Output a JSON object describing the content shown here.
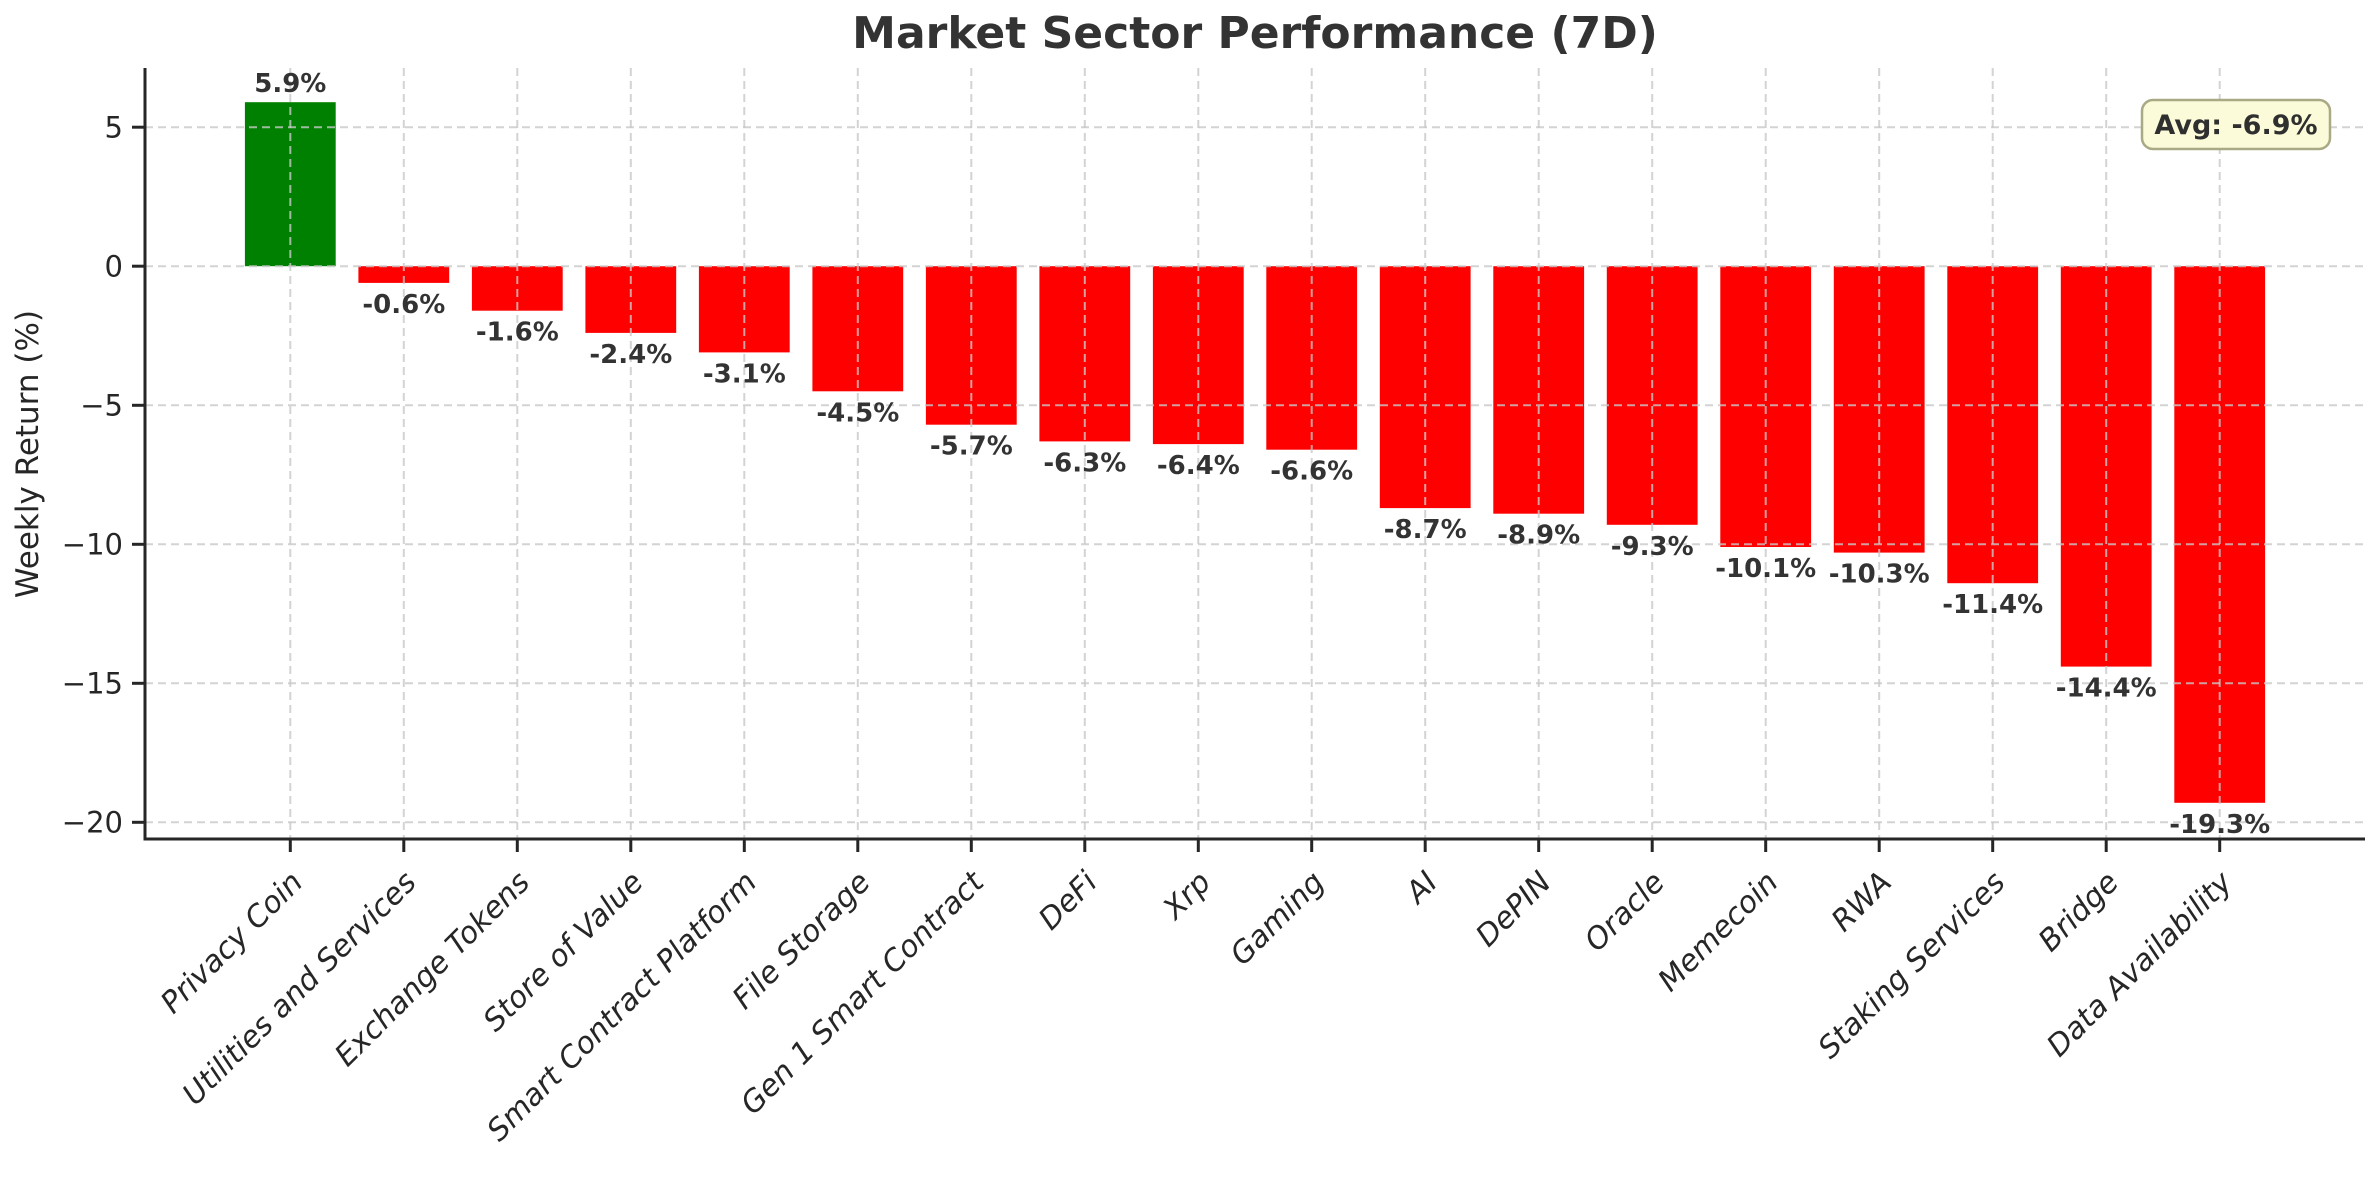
{
  "chart_data": {
    "type": "bar",
    "title": "Market Sector Performance (7D)",
    "xlabel": "",
    "ylabel": "Weekly Return (%)",
    "categories": [
      "Privacy Coin",
      "Utilities and Services",
      "Exchange Tokens",
      "Store of Value",
      "Smart Contract Platform",
      "File Storage",
      "Gen 1 Smart Contract",
      "DeFi",
      "Xrp",
      "Gaming",
      "AI",
      "DePIN",
      "Oracle",
      "Memecoin",
      "RWA",
      "Staking Services",
      "Bridge",
      "Data Availability"
    ],
    "values": [
      5.9,
      -0.6,
      -1.6,
      -2.4,
      -3.1,
      -4.5,
      -5.7,
      -6.3,
      -6.4,
      -6.6,
      -8.7,
      -8.9,
      -9.3,
      -10.1,
      -10.3,
      -11.4,
      -14.4,
      -19.3
    ],
    "value_labels": [
      "5.9%",
      "-0.6%",
      "-1.6%",
      "-2.4%",
      "-3.1%",
      "-4.5%",
      "-5.7%",
      "-6.3%",
      "-6.4%",
      "-6.6%",
      "-8.7%",
      "-8.9%",
      "-9.3%",
      "-10.1%",
      "-10.3%",
      "-11.4%",
      "-14.4%",
      "-19.3%"
    ],
    "ytick_values": [
      5,
      0,
      -5,
      -10,
      -15,
      -20
    ],
    "ytick_labels": [
      "5",
      "0",
      "−5",
      "−10",
      "−15",
      "−20"
    ],
    "ylim": [
      -20.6,
      7.13
    ],
    "bar_width_fraction": 0.8,
    "grid": {
      "show": true,
      "axis": "both",
      "style": "dashed",
      "on_top": true
    },
    "legend": {
      "show": false
    },
    "xtick_rotation_deg": 45,
    "annotation": {
      "label": "Avg: -6.9%"
    },
    "colors": {
      "positive_bar": "#008000",
      "negative_bar": "#ff0000",
      "grid": "#c8c8c8",
      "spine": "#262626",
      "tick_text": "#262626",
      "value_label_text": "#333333",
      "title_text": "#333333",
      "annotation_bg": "#fbfbd9",
      "annotation_border": "#a9a986",
      "annotation_text": "#2f2f2f",
      "background": "#ffffff"
    }
  }
}
